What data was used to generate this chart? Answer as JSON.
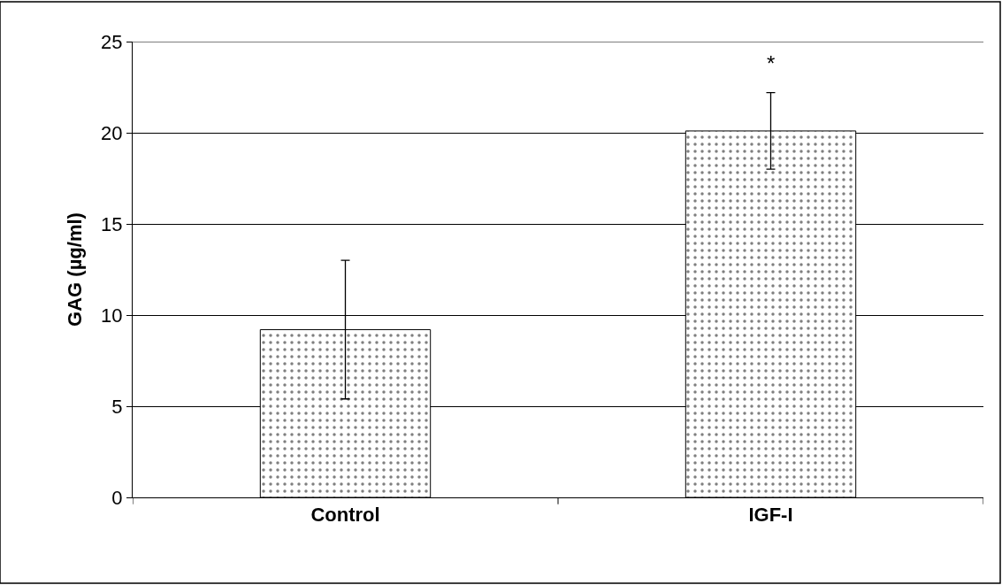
{
  "chart_data": {
    "type": "bar",
    "ylabel": "GAG (µg/ml)",
    "categories": [
      "Control",
      "IGF-I"
    ],
    "series": [
      {
        "color": "#000000",
        "values": [
          9.2,
          20.1
        ],
        "errors": [
          3.8,
          2.1
        ]
      }
    ],
    "ylim": [
      0,
      25
    ],
    "yticks": [
      0,
      5,
      10,
      15,
      20,
      25
    ],
    "grid": "y",
    "legend": false,
    "annotations": [
      "*"
    ]
  }
}
